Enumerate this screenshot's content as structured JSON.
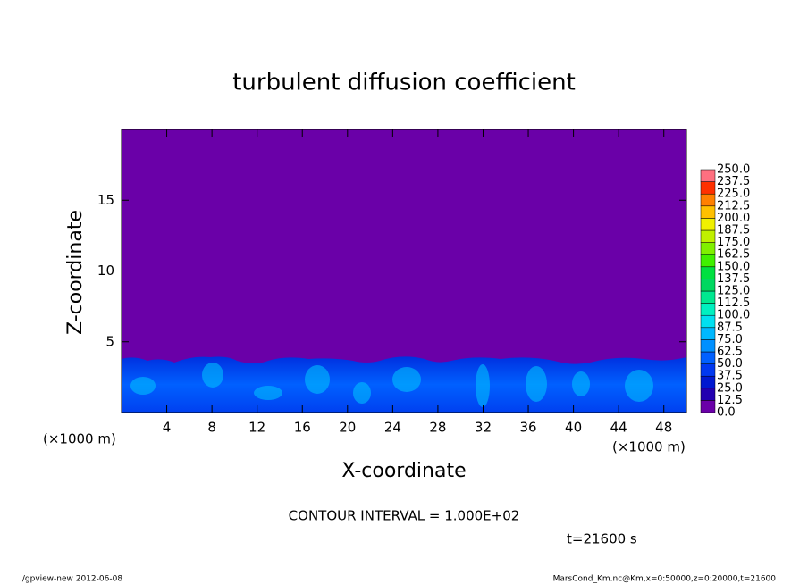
{
  "chart_data": {
    "type": "contour",
    "title": "turbulent diffusion coefficient",
    "x_label": "X-coordinate",
    "y_label": "Z-coordinate",
    "x_unit": "(×1000 m)",
    "xlim": [
      0,
      50
    ],
    "ylim": [
      0,
      20
    ],
    "xticks": [
      4,
      8,
      12,
      16,
      20,
      24,
      28,
      32,
      36,
      40,
      44,
      48
    ],
    "yticks": [
      5,
      10,
      15
    ],
    "levels": [
      {
        "value": 0,
        "label": "0.0"
      },
      {
        "value": 12.5,
        "label": "12.5"
      },
      {
        "value": 25,
        "label": "25.0"
      },
      {
        "value": 37.5,
        "label": "37.5"
      },
      {
        "value": 50,
        "label": "50.0"
      },
      {
        "value": 62.5,
        "label": "62.5"
      },
      {
        "value": 75,
        "label": "75.0"
      },
      {
        "value": 87.5,
        "label": "87.5"
      },
      {
        "value": 100,
        "label": "100.0"
      },
      {
        "value": 112.5,
        "label": "112.5"
      },
      {
        "value": 125,
        "label": "125.0"
      },
      {
        "value": 137.5,
        "label": "137.5"
      },
      {
        "value": 150,
        "label": "150.0"
      },
      {
        "value": 162.5,
        "label": "162.5"
      },
      {
        "value": 175,
        "label": "175.0"
      },
      {
        "value": 187.5,
        "label": "187.5"
      },
      {
        "value": 200,
        "label": "200.0"
      },
      {
        "value": 212.5,
        "label": "212.5"
      },
      {
        "value": 225,
        "label": "225.0"
      },
      {
        "value": 237.5,
        "label": "237.5"
      },
      {
        "value": 250,
        "label": "250.0"
      }
    ],
    "colors": [
      "#6a00a8",
      "#2200b0",
      "#0018d0",
      "#0038f0",
      "#0060ff",
      "#0090ff",
      "#00b8ff",
      "#00e0f0",
      "#00f0c0",
      "#00e890",
      "#00d860",
      "#00e040",
      "#40f000",
      "#80f000",
      "#c0f000",
      "#f0f000",
      "#ffc000",
      "#ff8000",
      "#ff3000",
      "#ff7080"
    ],
    "contour_interval": "CONTOUR INTERVAL = 1.000E+02",
    "time": "t=21600 s",
    "footer_left": "./gpview-new   2012-06-08",
    "footer_right": "MarsCond_Km.nc@Km,x=0:50000,z=0:20000,t=21600"
  }
}
